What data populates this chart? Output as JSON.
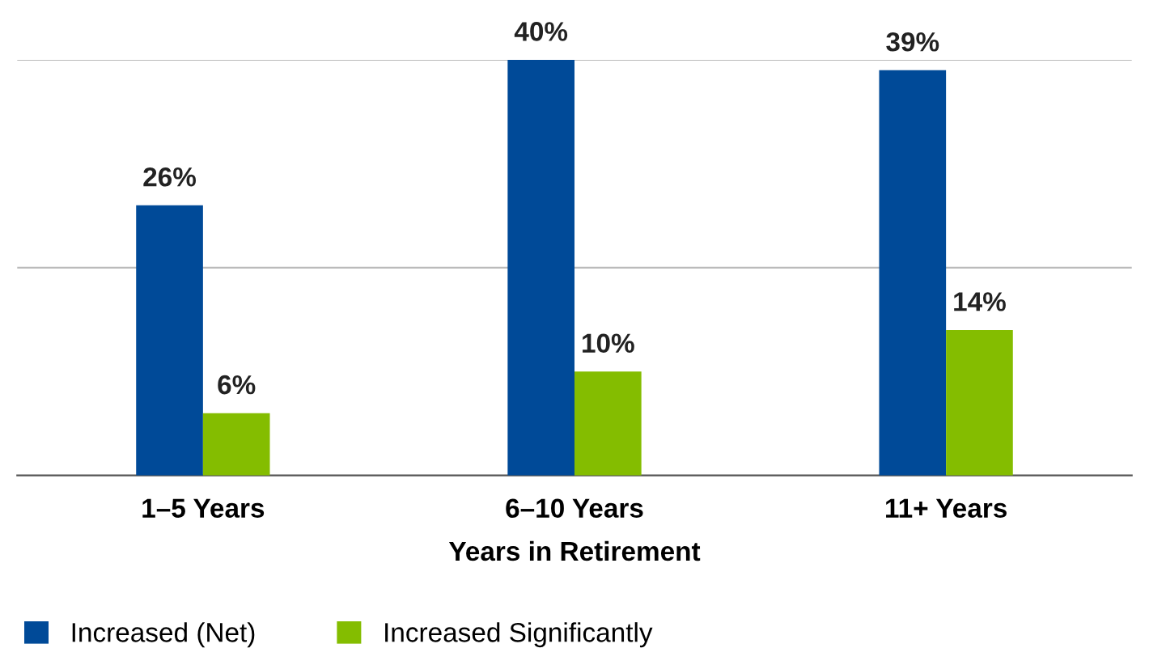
{
  "chart_data": {
    "type": "bar",
    "xlabel": "Years in Retirement",
    "categories": [
      "1–5 Years",
      "6–10 Years",
      "11+ Years"
    ],
    "series": [
      {
        "name": "Increased (Net)",
        "color": "#004a98",
        "values": [
          26,
          40,
          39
        ],
        "value_labels": [
          "26%",
          "40%",
          "39%"
        ]
      },
      {
        "name": "Increased Significantly",
        "color": "#84bd00",
        "values": [
          6,
          10,
          14
        ],
        "value_labels": [
          "6%",
          "10%",
          "14%"
        ]
      }
    ],
    "tick_labels": "x",
    "ref_lines": [
      {
        "axis": "y",
        "value": 20,
        "color": "#bbbbbb"
      },
      {
        "axis": "y",
        "value": 40,
        "color": "#bbbbbb"
      }
    ],
    "legend": "bottom left"
  }
}
